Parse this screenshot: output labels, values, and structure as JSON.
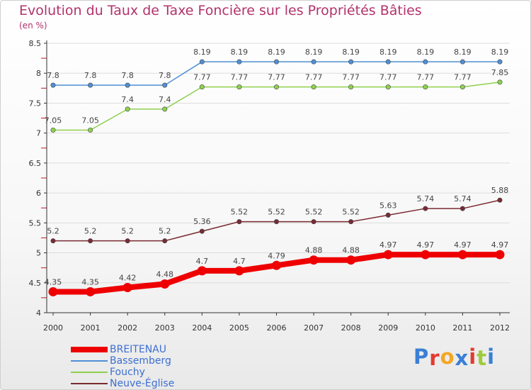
{
  "title": "Evolution du Taux de Taxe Foncière sur les Propriétés Bâties",
  "subtitle": "(en %)",
  "logo": {
    "text": "Proxiti",
    "letter_colors": [
      "#3a7fd5",
      "#e23b2e",
      "#f5a623",
      "#3a7fd5",
      "#e23b2e",
      "#9ecb3a",
      "#3a7fd5"
    ]
  },
  "colors": {
    "title": "#b2326c",
    "axis": "#333333",
    "grid": "#dddddd",
    "legend_text": "#3c6fd2"
  },
  "chart_data": {
    "type": "line",
    "title": "Evolution du Taux de Taxe Foncière sur les Propriétés Bâties",
    "ylabel": "(en %)",
    "xlabel": "",
    "x": [
      "2000",
      "2001",
      "2002",
      "2003",
      "2004",
      "2005",
      "2006",
      "2007",
      "2008",
      "2009",
      "2010",
      "2011",
      "2012"
    ],
    "ylim": [
      4,
      8.5
    ],
    "yticks": [
      "4",
      "4.5",
      "5",
      "5.5",
      "6",
      "6.5",
      "7",
      "7.5",
      "8",
      "8.5"
    ],
    "grid": true,
    "legend_position": "bottom-left",
    "series": [
      {
        "name": "Bassemberg",
        "color": "#4f8fd6",
        "values": [
          7.8,
          7.8,
          7.8,
          7.8,
          8.19,
          8.19,
          8.19,
          8.19,
          8.19,
          8.19,
          8.19,
          8.19,
          8.19
        ],
        "labels": [
          "7.8",
          "7.8",
          "7.8",
          "7.8",
          "8.19",
          "8.19",
          "8.19",
          "8.19",
          "8.19",
          "8.19",
          "8.19",
          "8.19",
          "8.19"
        ]
      },
      {
        "name": "Fouchy",
        "color": "#8fd14f",
        "values": [
          7.05,
          7.05,
          7.4,
          7.4,
          7.77,
          7.77,
          7.77,
          7.77,
          7.77,
          7.77,
          7.77,
          7.77,
          7.85
        ],
        "labels": [
          "7.05",
          "7.05",
          "7.4",
          "7.4",
          "7.77",
          "7.77",
          "7.77",
          "7.77",
          "7.77",
          "7.77",
          "7.77",
          "7.77",
          "7.85"
        ]
      },
      {
        "name": "Neuve-Église",
        "color": "#7a2a32",
        "values": [
          5.2,
          5.2,
          5.2,
          5.2,
          5.36,
          5.52,
          5.52,
          5.52,
          5.52,
          5.63,
          5.74,
          5.74,
          5.88
        ],
        "labels": [
          "5.2",
          "5.2",
          "5.2",
          "5.2",
          "5.36",
          "5.52",
          "5.52",
          "5.52",
          "5.52",
          "5.63",
          "5.74",
          "5.74",
          "5.88"
        ]
      },
      {
        "name": "BREITENAU",
        "color": "#ee0000",
        "emphasis": true,
        "values": [
          4.35,
          4.35,
          4.42,
          4.48,
          4.7,
          4.7,
          4.79,
          4.88,
          4.88,
          4.97,
          4.97,
          4.97,
          4.97
        ],
        "labels": [
          "4.35",
          "4.35",
          "4.42",
          "4.48",
          "4.7",
          "4.7",
          "4.79",
          "4.88",
          "4.88",
          "4.97",
          "4.97",
          "4.97",
          "4.97"
        ]
      }
    ],
    "legend_order": [
      "BREITENAU",
      "Bassemberg",
      "Fouchy",
      "Neuve-Église"
    ]
  }
}
